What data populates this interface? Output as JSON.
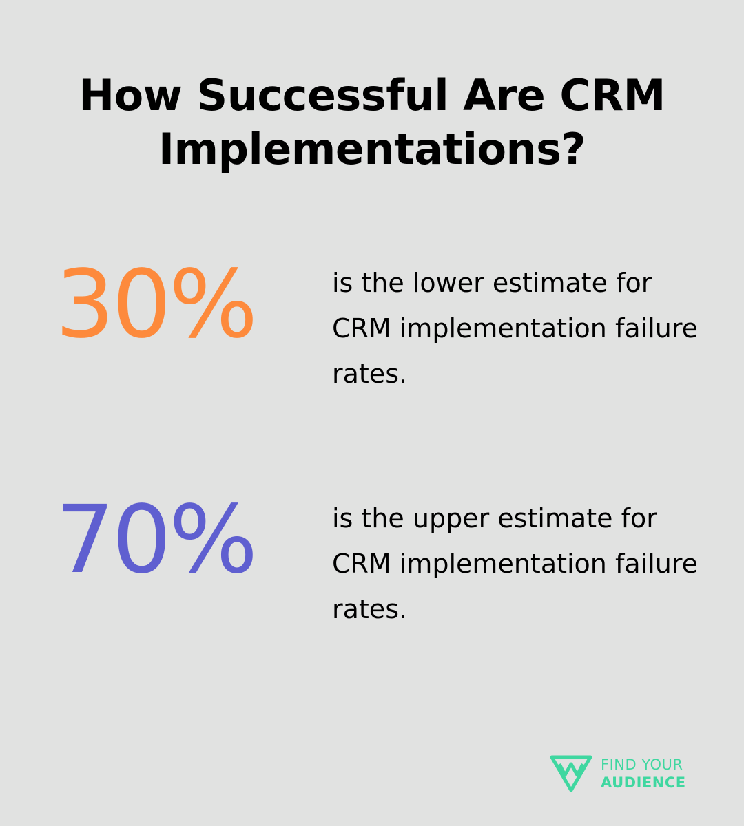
{
  "title": "How Successful Are CRM Implementations?",
  "stats": [
    {
      "value": "30%",
      "color": "#fd8a3c",
      "description": "is the lower estimate for CRM implementation failure rates."
    },
    {
      "value": "70%",
      "color": "#5f5fd0",
      "description": "is the upper estimate for CRM implementation failure rates."
    }
  ],
  "brand": {
    "line1": "FIND YOUR",
    "line2": "AUDIENCE",
    "color": "#3fd7a0",
    "icon": "find-your-audience-logo-icon"
  }
}
